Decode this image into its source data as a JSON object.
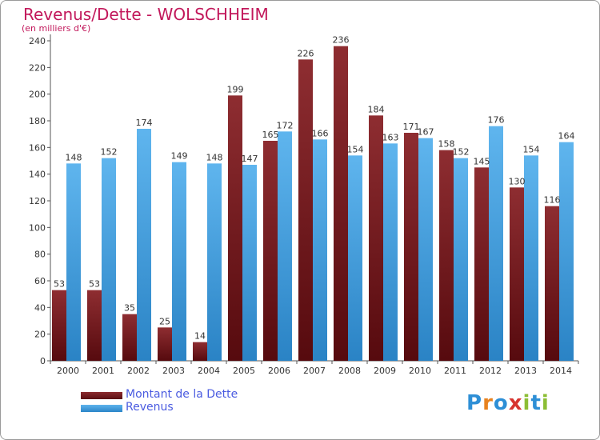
{
  "header": {
    "title": "Revenus/Dette - WOLSCHHEIM",
    "subtitle": "(en milliers d'€)"
  },
  "legend": {
    "debt_label": "Montant de la Dette",
    "revenue_label": "Revenus"
  },
  "logo": {
    "text": "Proxiti",
    "letter_colors": [
      "#2e8fd6",
      "#e8821e",
      "#2e8fd6",
      "#d7332f",
      "#8cbe35",
      "#2e8fd6",
      "#8cbe35"
    ]
  },
  "colors": {
    "debt": "#6e1d21",
    "revenue": "#4aa3e3",
    "title": "#c2185b",
    "legend_text": "#4a5be0"
  },
  "chart_data": {
    "type": "bar",
    "title": "Revenus/Dette - WOLSCHHEIM",
    "subtitle": "(en milliers d'€)",
    "categories": [
      "2000",
      "2001",
      "2002",
      "2003",
      "2004",
      "2005",
      "2006",
      "2007",
      "2008",
      "2009",
      "2010",
      "2011",
      "2012",
      "2013",
      "2014"
    ],
    "series": [
      {
        "name": "Montant de la Dette",
        "values": [
          53,
          53,
          35,
          25,
          14,
          199,
          165,
          226,
          236,
          184,
          171,
          158,
          145,
          130,
          116
        ]
      },
      {
        "name": "Revenus",
        "values": [
          148,
          152,
          174,
          149,
          148,
          147,
          172,
          166,
          154,
          163,
          167,
          152,
          176,
          154,
          164
        ]
      }
    ],
    "ylim": [
      0,
      240
    ],
    "yticks": [
      0,
      20,
      40,
      60,
      80,
      100,
      120,
      140,
      160,
      180,
      200,
      220,
      240
    ],
    "grid": false,
    "legend_position": "bottom-left",
    "data_labels": true
  }
}
